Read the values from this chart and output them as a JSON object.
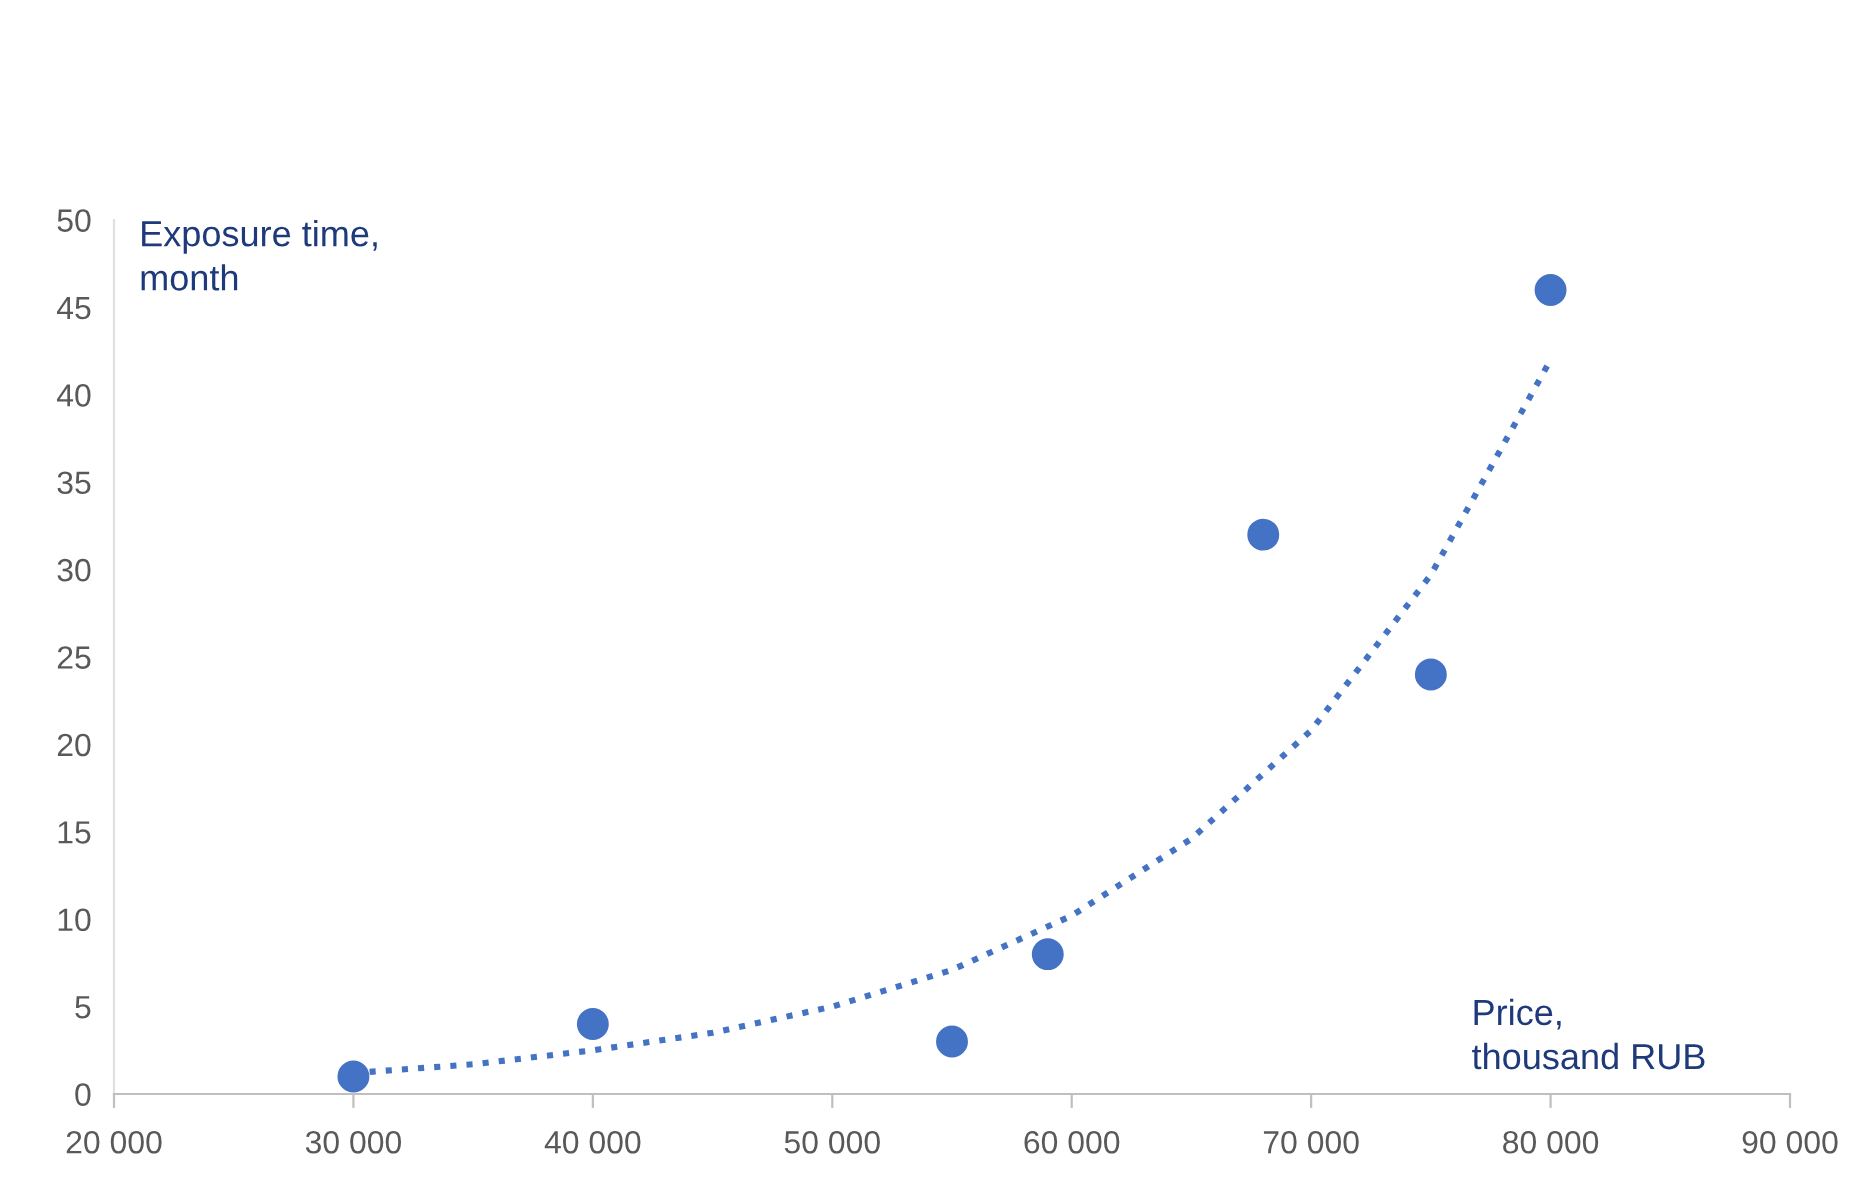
{
  "chart_data": {
    "type": "scatter",
    "xlabel": "Price,\nthousand RUB",
    "ylabel": "Exposure time,\nmonth",
    "series": [
      {
        "color": "#4472c4",
        "x": [
          30000,
          40000,
          55000,
          59000,
          68000,
          75000,
          80000
        ],
        "values": [
          1,
          4,
          3,
          8,
          32,
          24,
          46
        ],
        "marker": "circle"
      },
      {
        "type": "line",
        "color": "#4472c4",
        "line_style": "dotted",
        "marker": "none",
        "x": [
          30000,
          35000,
          40000,
          45000,
          50000,
          55000,
          60000,
          65000,
          70000,
          75000,
          80000
        ],
        "values": [
          1.2,
          1.7,
          2.5,
          3.5,
          5.0,
          7.1,
          10.2,
          14.6,
          20.8,
          29.7,
          42
        ]
      }
    ],
    "xlim": [
      20000,
      90000
    ],
    "xticks": [
      {
        "value": 20000,
        "label": "20 000"
      },
      {
        "value": 30000,
        "label": "30 000"
      },
      {
        "value": 40000,
        "label": "40 000"
      },
      {
        "value": 50000,
        "label": "50 000"
      },
      {
        "value": 60000,
        "label": "60 000"
      },
      {
        "value": 70000,
        "label": "70 000"
      },
      {
        "value": 80000,
        "label": "80 000"
      },
      {
        "value": 90000,
        "label": "90 000"
      }
    ],
    "ylim": [
      0,
      50
    ],
    "yticks": [
      0,
      5,
      10,
      15,
      20,
      25,
      30,
      35,
      40,
      45,
      50
    ],
    "grid": false,
    "legend": false
  }
}
